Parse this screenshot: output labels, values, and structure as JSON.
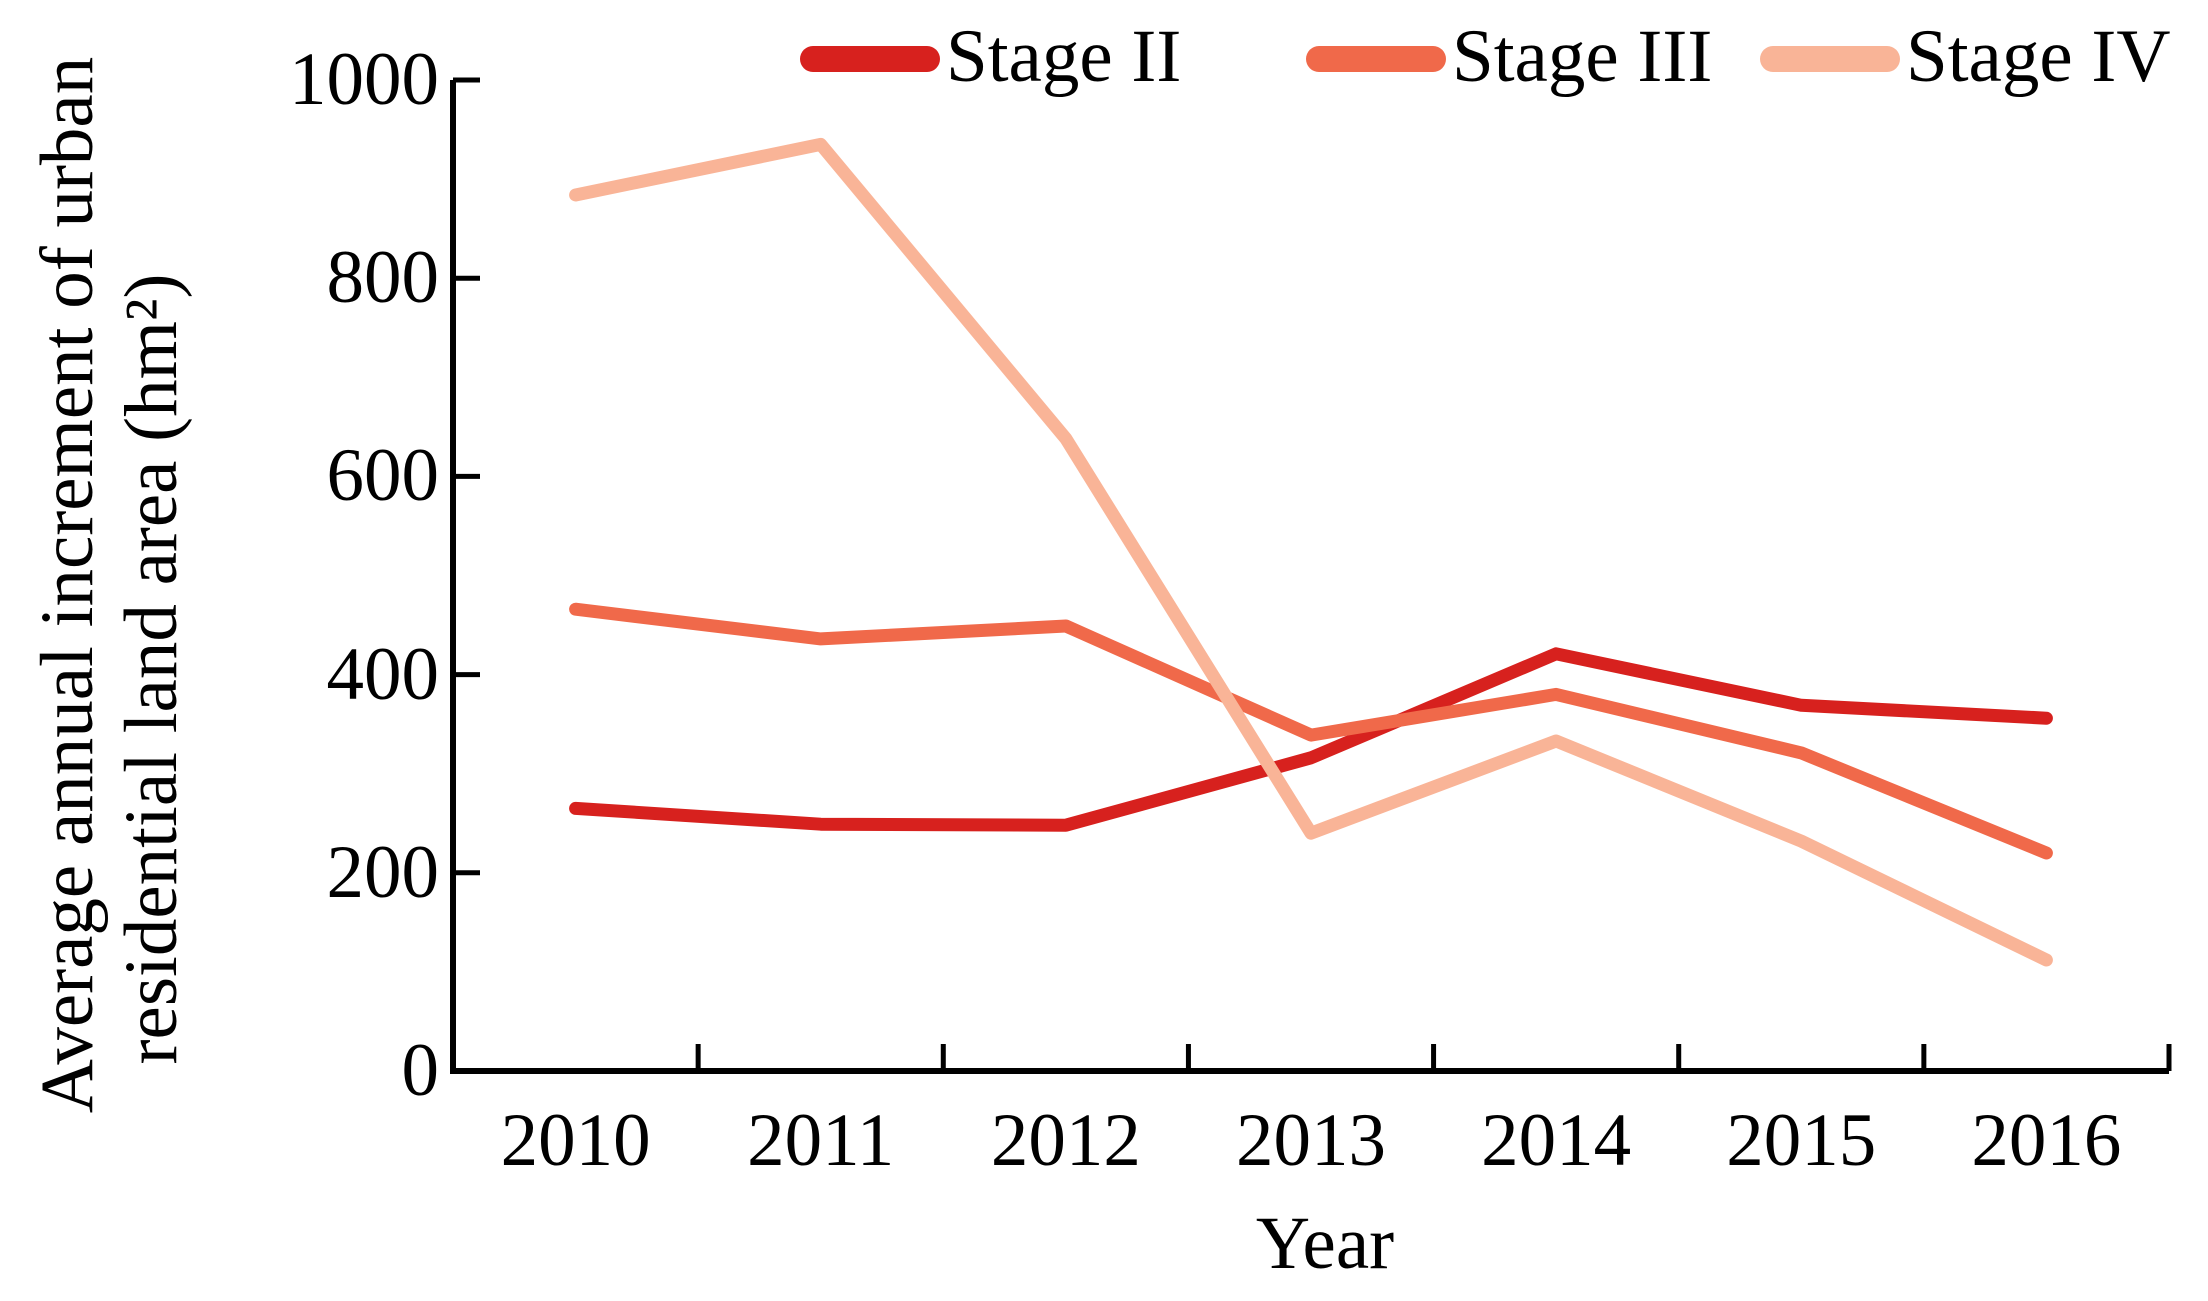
{
  "chart_data": {
    "type": "line",
    "title": "",
    "x_categories": [
      "2010",
      "2011",
      "2012",
      "2013",
      "2014",
      "2015",
      "2016"
    ],
    "xlabel": "Year",
    "ylabel": "Average annual increment of urban residential land area (hm²)",
    "ylabel_lines": [
      "Average annual increment of urban",
      "residential land area (hm²)"
    ],
    "ylim": [
      0,
      1000
    ],
    "yticks": [
      0,
      200,
      400,
      600,
      800,
      1000
    ],
    "grid": false,
    "legend_position": "top",
    "axis_color": "#000000",
    "series": [
      {
        "name": "Stage II",
        "color": "#d7211e",
        "values": [
          265,
          249,
          248,
          316,
          421,
          369,
          356
        ]
      },
      {
        "name": "Stage III",
        "color": "#f0694a",
        "values": [
          466,
          436,
          449,
          339,
          380,
          321,
          220
        ]
      },
      {
        "name": "Stage IV",
        "color": "#f9b497",
        "values": [
          884,
          935,
          638,
          240,
          333,
          232,
          112
        ]
      }
    ]
  }
}
